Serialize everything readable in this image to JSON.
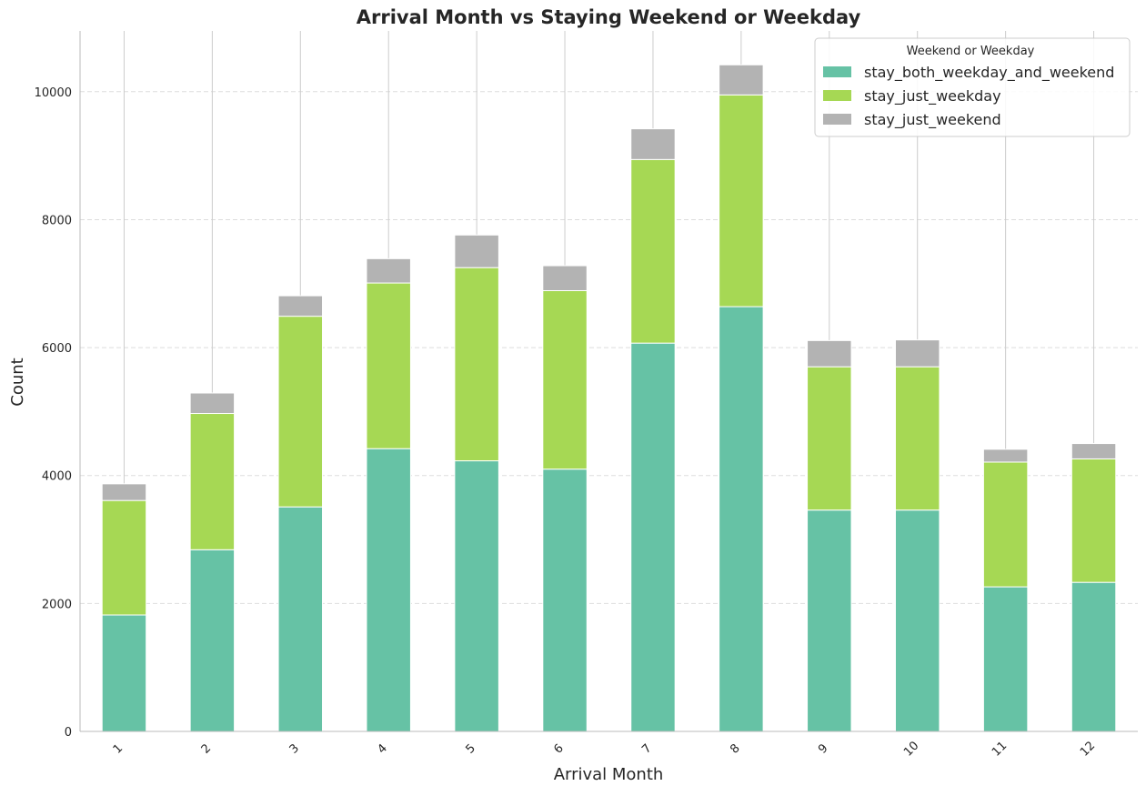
{
  "chart_data": {
    "type": "bar",
    "stacked": true,
    "title": "Arrival Month vs Staying Weekend or Weekday",
    "xlabel": "Arrival Month",
    "ylabel": "Count",
    "categories": [
      "1",
      "2",
      "3",
      "4",
      "5",
      "6",
      "7",
      "8",
      "9",
      "10",
      "11",
      "12"
    ],
    "yticks": [
      "0",
      "2000",
      "4000",
      "6000",
      "8000",
      "10000"
    ],
    "ylim": [
      0,
      10950
    ],
    "grid": "horizontal dashed",
    "legend": {
      "title": "Weekend or Weekday",
      "position": "top-right"
    },
    "series": [
      {
        "name": "stay_both_weekday_and_weekend",
        "color": "#66c2a5",
        "values": [
          1820,
          2840,
          3510,
          4420,
          4230,
          4100,
          6070,
          6640,
          3460,
          3460,
          2260,
          2330
        ]
      },
      {
        "name": "stay_just_weekday",
        "color": "#a6d854",
        "values": [
          1790,
          2130,
          2980,
          2590,
          3020,
          2790,
          2870,
          3310,
          2240,
          2240,
          1950,
          1930
        ]
      },
      {
        "name": "stay_just_weekend",
        "color": "#b3b3b3",
        "values": [
          260,
          320,
          320,
          380,
          510,
          390,
          480,
          470,
          410,
          420,
          200,
          240
        ]
      }
    ]
  }
}
